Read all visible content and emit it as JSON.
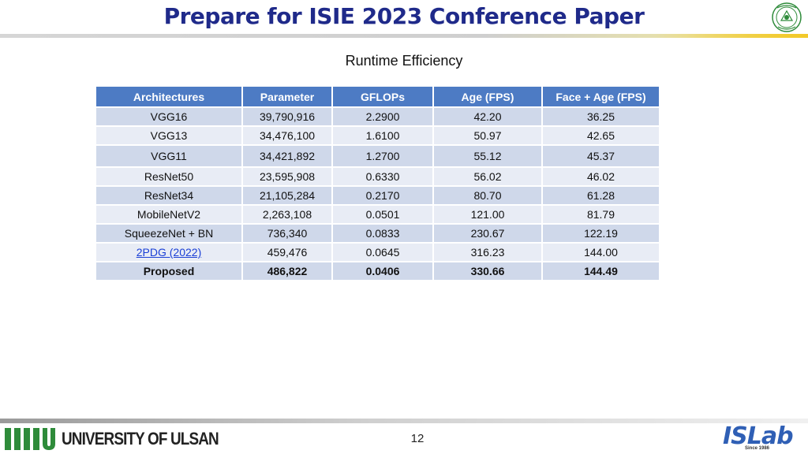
{
  "slide": {
    "title": "Prepare for ISIE 2023 Conference Paper",
    "subtitle": "Runtime Efficiency",
    "page_number": "12"
  },
  "table": {
    "headers": [
      "Architectures",
      "Parameter",
      "GFLOPs",
      "Age (FPS)",
      "Face + Age (FPS)"
    ],
    "rows": [
      [
        "VGG16",
        "39,790,916",
        "2.2900",
        "42.20",
        "36.25"
      ],
      [
        "VGG13",
        "34,476,100",
        "1.6100",
        "50.97",
        "42.65"
      ],
      [
        "VGG11",
        "34,421,892",
        "1.2700",
        "55.12",
        "45.37"
      ],
      [
        "ResNet50",
        "23,595,908",
        "0.6330",
        "56.02",
        "46.02"
      ],
      [
        "ResNet34",
        "21,105,284",
        "0.2170",
        "80.70",
        "61.28"
      ],
      [
        "MobileNetV2",
        "2,263,108",
        "0.0501",
        "121.00",
        "81.79"
      ],
      [
        "SqueezeNet + BN",
        "736,340",
        "0.0833",
        "230.67",
        "122.19"
      ],
      [
        "2PDG (2022)",
        "459,476",
        "0.0645",
        "316.23",
        "144.00"
      ],
      [
        "Proposed",
        "486,822",
        "0.0406",
        "330.66",
        "144.49"
      ]
    ]
  },
  "footer": {
    "university": "UNIVERSITY OF ULSAN",
    "lab_logo": {
      "is": "IS",
      "lab": "Lab",
      "since": "Since 1986"
    }
  },
  "colors": {
    "title": "#1f2a8a",
    "header_bg": "#4d7bc4",
    "row_dark": "#cfd8ea",
    "row_light": "#e8ecf5",
    "link": "#1a3fd6",
    "accent_yellow": "#f2c92a",
    "logo_green": "#2e8b3a"
  }
}
